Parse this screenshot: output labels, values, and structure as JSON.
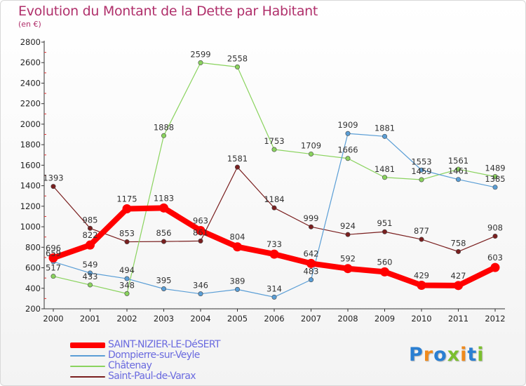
{
  "title": "Evolution du Montant de la Dette par Habitant",
  "subtitle": "(en €)",
  "logo_letters": [
    {
      "ch": "P",
      "color": "#2a7fd2"
    },
    {
      "ch": "r",
      "color": "#f08a1c"
    },
    {
      "ch": "o",
      "color": "#2a7fd2"
    },
    {
      "ch": "x",
      "color": "#7bbf2e"
    },
    {
      "ch": "i",
      "color": "#f08a1c"
    },
    {
      "ch": "t",
      "color": "#2a7fd2"
    },
    {
      "ch": "i",
      "color": "#7bbf2e"
    }
  ],
  "chart_data": {
    "type": "line",
    "title": "Evolution du Montant de la Dette par Habitant",
    "subtitle": "(en €)",
    "x": [
      "2000",
      "2001",
      "2002",
      "2003",
      "2004",
      "2005",
      "2006",
      "2007",
      "2008",
      "2009",
      "2010",
      "2011",
      "2012"
    ],
    "ylim": [
      200,
      2800
    ],
    "yticks": [
      200,
      400,
      600,
      800,
      1000,
      1200,
      1400,
      1600,
      1800,
      2000,
      2200,
      2400,
      2600,
      2800
    ],
    "grid": false,
    "legend_position": "bottom-left",
    "series": [
      {
        "name": "Saint-Paul-de-Varax",
        "color": "#7a1f1f",
        "width": 1.2,
        "values": [
          1393,
          985,
          853,
          856,
          861,
          1581,
          1184,
          999,
          924,
          951,
          877,
          758,
          908
        ],
        "labels": [
          "1393",
          "985",
          "853",
          "856",
          "861",
          "1581",
          "1184",
          "999",
          "924",
          "951",
          "877",
          "758",
          "908"
        ]
      },
      {
        "name": "Châtenay",
        "color": "#8ad35e",
        "width": 1.2,
        "values": [
          517,
          433,
          348,
          1888,
          2599,
          2558,
          1753,
          1709,
          1666,
          1481,
          1459,
          1561,
          1489
        ],
        "labels": [
          "517",
          "433",
          "348",
          "1888",
          "2599",
          "2558",
          "1753",
          "1709",
          "1666",
          "1481",
          "1459",
          "1561",
          "1489"
        ]
      },
      {
        "name": "Dompierre-sur-Veyle",
        "color": "#5a9ed6",
        "width": 1.2,
        "values": [
          659,
          549,
          494,
          395,
          346,
          389,
          314,
          483,
          1909,
          1881,
          1553,
          1461,
          1385
        ],
        "labels": [
          "659",
          "549",
          "494",
          "395",
          "346",
          "389",
          "314",
          "483",
          "1909",
          "1881",
          "1553",
          "1461",
          "1385"
        ]
      },
      {
        "name": "SAINT-NIZIER-LE-DéSERT",
        "color": "#ff0000",
        "width": 8,
        "values": [
          696,
          822,
          1175,
          1183,
          963,
          804,
          733,
          642,
          592,
          560,
          429,
          427,
          603
        ],
        "labels": [
          "696",
          "822",
          "1175",
          "1183",
          "963",
          "804",
          "733",
          "642",
          "592",
          "560",
          "429",
          "427",
          "603"
        ]
      }
    ],
    "legend_order": [
      "SAINT-NIZIER-LE-DéSERT",
      "Dompierre-sur-Veyle",
      "Châtenay",
      "Saint-Paul-de-Varax"
    ]
  }
}
